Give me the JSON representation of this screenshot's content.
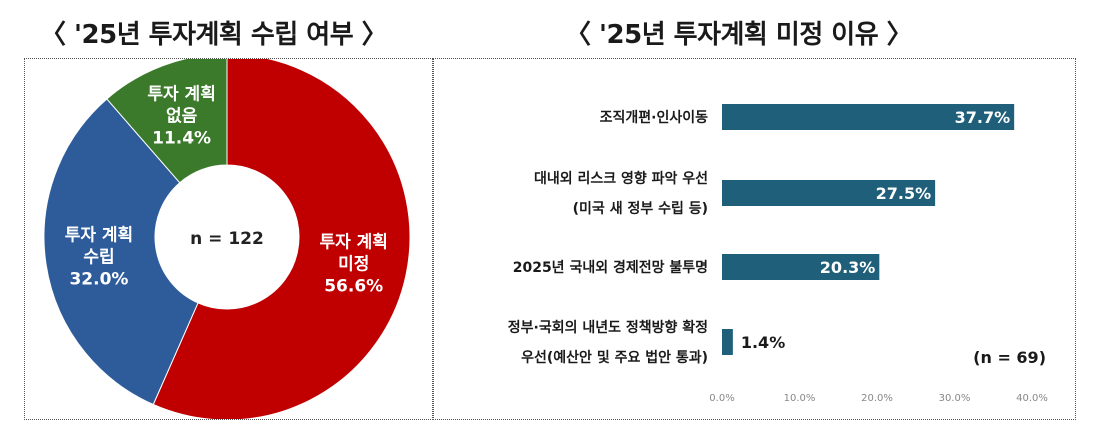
{
  "titles": {
    "left": "〈 '25년 투자계획 수립 여부 〉",
    "right": "〈 '25년 투자계획 미정 이유 〉"
  },
  "chart_data": [
    {
      "type": "pie",
      "title": "'25년 투자계획 수립 여부",
      "center_label": "n = 122",
      "slices": [
        {
          "label_lines": [
            "투자 계획",
            "미정"
          ],
          "value": 56.6,
          "value_label": "56.6%",
          "color": "#c00000"
        },
        {
          "label_lines": [
            "투자 계획",
            "수립"
          ],
          "value": 32.0,
          "value_label": "32.0%",
          "color": "#2e5c9b"
        },
        {
          "label_lines": [
            "투자 계획",
            "없음"
          ],
          "value": 11.4,
          "value_label": "11.4%",
          "color": "#3b7a2a"
        }
      ]
    },
    {
      "type": "bar",
      "orientation": "horizontal",
      "title": "'25년 투자계획 미정 이유",
      "categories": [
        [
          "조직개편·인사이동"
        ],
        [
          "대내외 리스크 영향 파악 우선",
          "(미국 새 정부 수립 등)"
        ],
        [
          "2025년 국내외 경제전망 불투명"
        ],
        [
          "정부·국회의 내년도 정책방향 확정",
          "우선(예산안 및 주요 법안 통과)"
        ]
      ],
      "values": [
        37.7,
        27.5,
        20.3,
        1.4
      ],
      "value_labels": [
        "37.7%",
        "27.5%",
        "20.3%",
        "1.4%"
      ],
      "xlim": [
        0,
        40
      ],
      "x_ticks": [
        "0.0%",
        "10.0%",
        "20.0%",
        "30.0%",
        "40.0%"
      ],
      "note": "(n = 69)",
      "bar_color": "#1f5f7a",
      "grid": false
    }
  ]
}
